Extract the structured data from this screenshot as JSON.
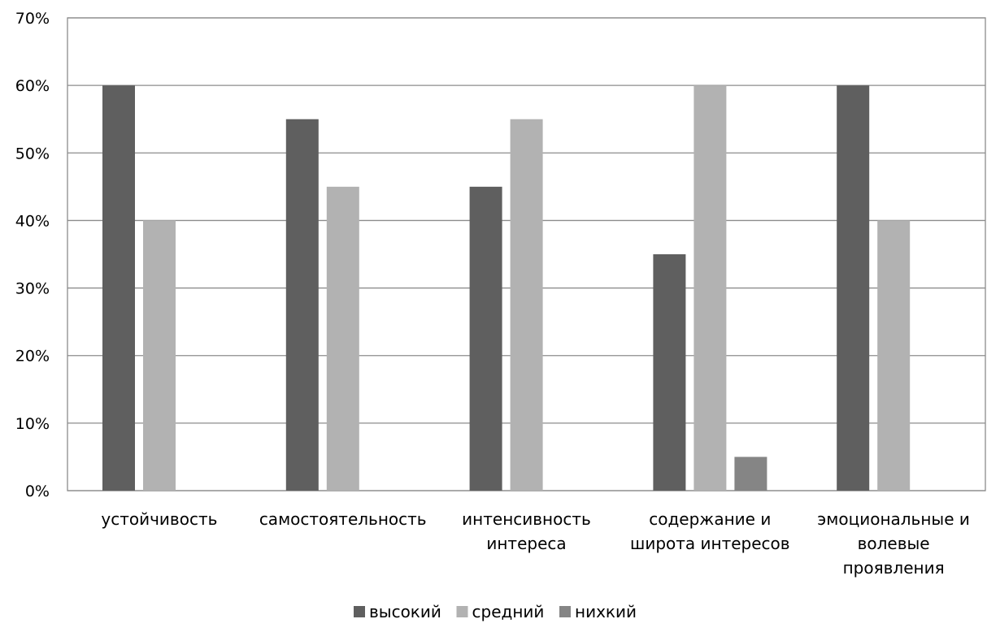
{
  "chart_data": {
    "type": "bar",
    "categories": [
      [
        "устойчивость"
      ],
      [
        "самостоятельность"
      ],
      [
        "интенсивность",
        "интереса"
      ],
      [
        "содержание и",
        "широта интересов"
      ],
      [
        "эмоциональные и",
        "волевые",
        "проявления"
      ]
    ],
    "series": [
      {
        "name": "высокий",
        "color": "#5f5f5f",
        "values": [
          60,
          55,
          45,
          35,
          60
        ]
      },
      {
        "name": "средний",
        "color": "#b2b2b2",
        "values": [
          40,
          45,
          55,
          60,
          40
        ]
      },
      {
        "name": "нихкий",
        "color": "#858585",
        "values": [
          0,
          0,
          0,
          5,
          0
        ]
      }
    ],
    "y_ticks": [
      "0%",
      "10%",
      "20%",
      "30%",
      "40%",
      "50%",
      "60%",
      "70%"
    ],
    "ylim": [
      0,
      70
    ],
    "grid": true,
    "legend_position": "bottom"
  }
}
